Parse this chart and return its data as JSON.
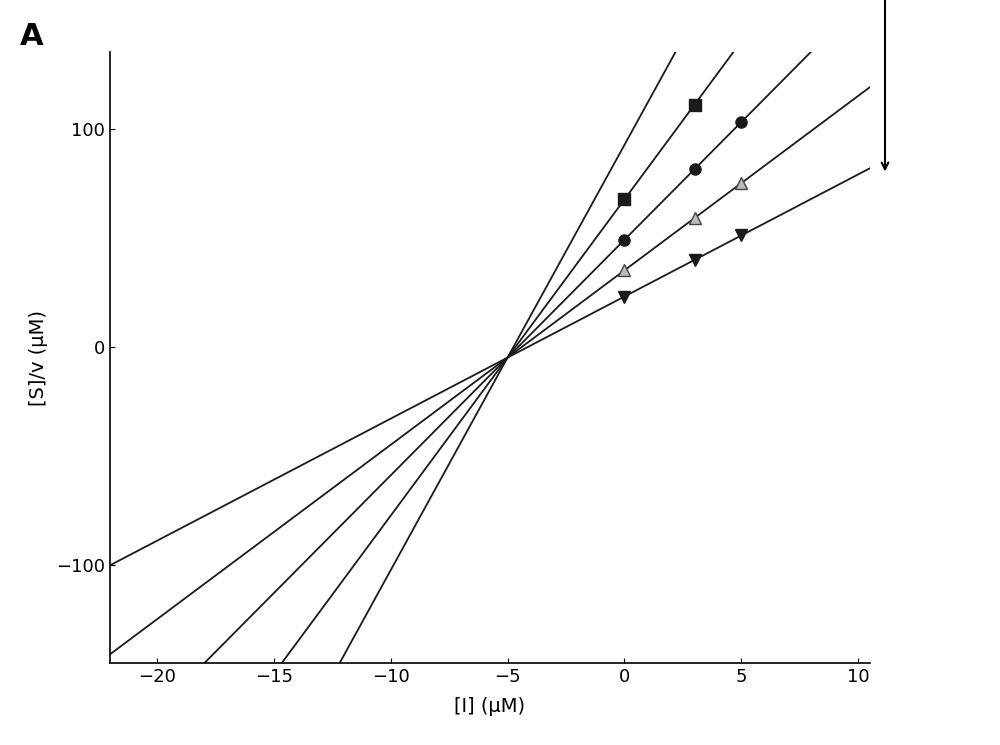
{
  "title_label": "A",
  "xlabel": "[I] (μM)",
  "ylabel": "[S]/v (μM)",
  "xlim": [
    -22,
    10.5
  ],
  "ylim": [
    -145,
    135
  ],
  "xticks": [
    -20,
    -15,
    -10,
    -5,
    0,
    5,
    10
  ],
  "yticks": [
    -100,
    0,
    100
  ],
  "background_color": "#ffffff",
  "intersection_x": -5.0,
  "intersection_y": -5.0,
  "slopes": [
    19.5,
    14.5,
    10.8,
    8.0,
    5.6
  ],
  "markers": [
    null,
    "s",
    "o",
    "^",
    "v"
  ],
  "marker_data_x": [
    0,
    3,
    5
  ],
  "linewidth": 1.3,
  "markersize": 8
}
